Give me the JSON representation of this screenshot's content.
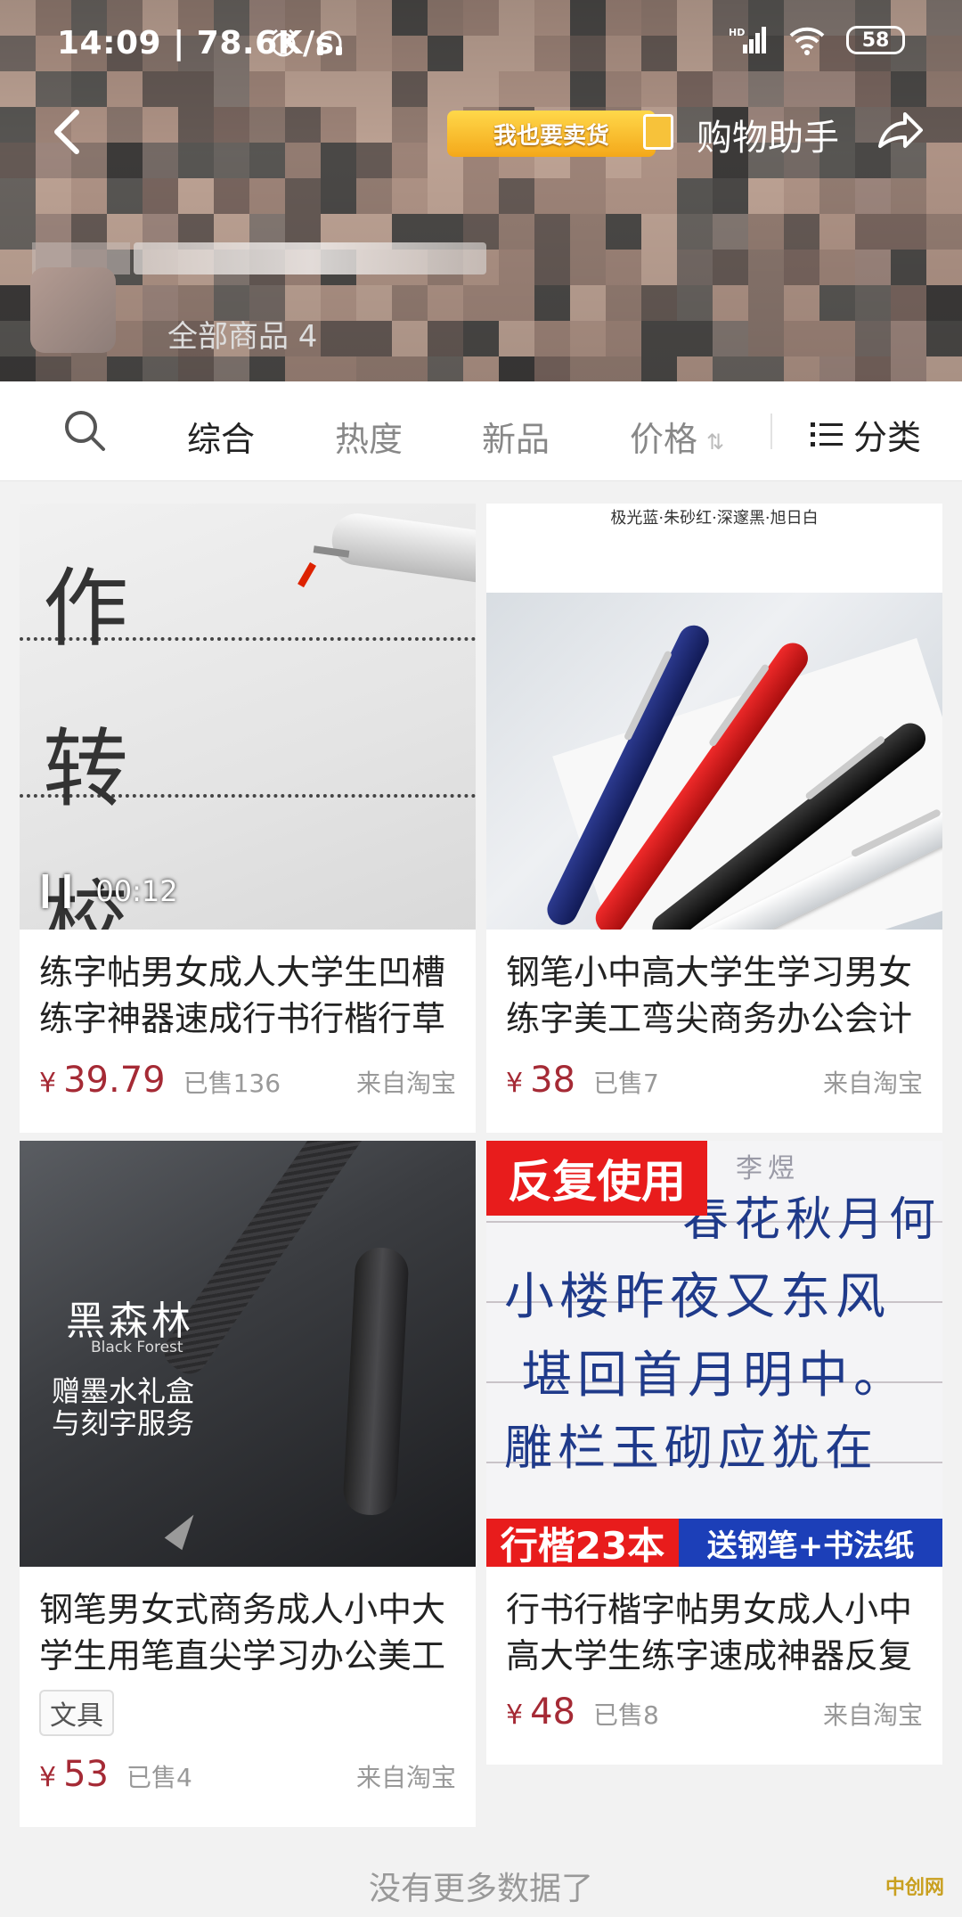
{
  "status_bar": {
    "time": "14:09 | 78.6K/s",
    "network": "HD",
    "battery": "58"
  },
  "header": {
    "sell_badge": "我也要卖货",
    "assistant": "购物助手",
    "all_goods": "全部商品 4"
  },
  "filter": {
    "tabs": [
      {
        "label": "综合",
        "active": true
      },
      {
        "label": "热度",
        "active": false
      },
      {
        "label": "新品",
        "active": false
      },
      {
        "label": "价格",
        "active": false
      }
    ],
    "category": "分类"
  },
  "products": [
    {
      "title": "练字帖男女成人大学生凹槽练字神器速成行书行楷行草",
      "price_symbol": "¥",
      "price": "39.79",
      "sold": "已售136",
      "source": "来自淘宝",
      "video_time": "00:12",
      "image_chars": [
        "作",
        "转",
        "校"
      ]
    },
    {
      "title": "钢笔小中高大学生学习男女练字美工弯尖商务办公会计",
      "price_symbol": "¥",
      "price": "38",
      "sold": "已售7",
      "source": "来自淘宝",
      "image_caption": "极光蓝·朱砂红·深邃黑·旭日白"
    },
    {
      "title": "钢笔男女式商务成人小中大学生用笔直尖学习办公美工",
      "tag": "文具",
      "price_symbol": "¥",
      "price": "53",
      "sold": "已售4",
      "source": "来自淘宝",
      "image_title": "黑森林",
      "image_subtitle": "Black Forest",
      "image_line1": "赠墨水礼盒",
      "image_line2": "与刻字服务"
    },
    {
      "title": "行书行楷字帖男女成人小中高大学生练字速成神器反复",
      "price_symbol": "¥",
      "price": "48",
      "sold": "已售8",
      "source": "来自淘宝",
      "image_badge_top": "反复使用",
      "image_badge_left": "行楷23本",
      "image_badge_right": "送钢笔+书法纸",
      "image_lines": [
        "李煜",
        "春花秋月何时了？",
        "小楼昨夜又东风",
        "堪回首月明中。",
        "雕栏玉砌应犹在"
      ]
    }
  ],
  "footer": {
    "no_more": "没有更多数据了",
    "watermark": "中创网"
  },
  "colors": {
    "price": "#a52a35",
    "badge_red": "#e81c1c",
    "badge_blue": "#1c3fb8",
    "badge_gold": "#f4a81a"
  }
}
